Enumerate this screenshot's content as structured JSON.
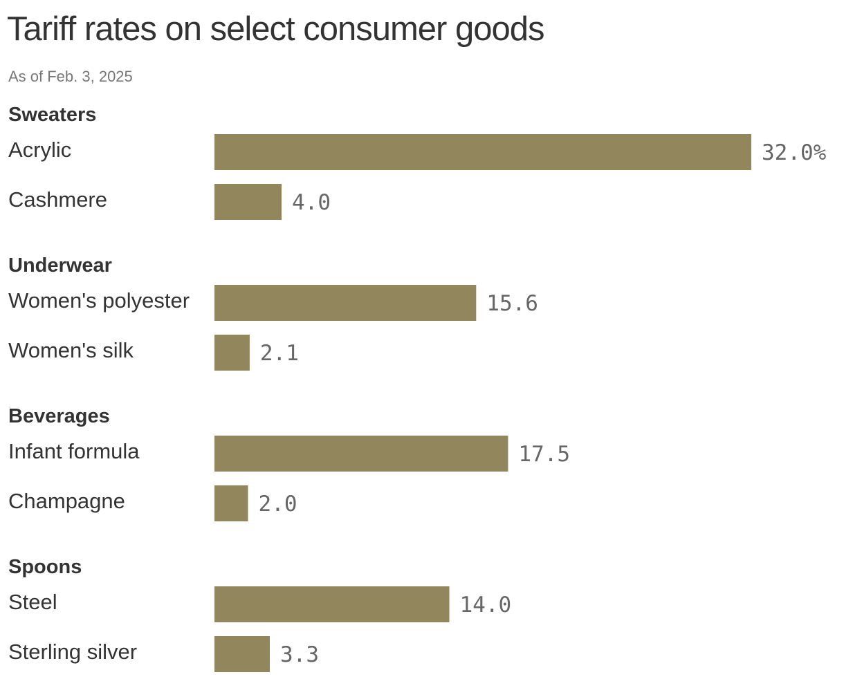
{
  "header": {
    "title": "Tariff rates on select consumer goods",
    "subtitle": "As of Feb. 3, 2025"
  },
  "colors": {
    "bar": "#91865c",
    "text": "#333333",
    "value_text": "#666666",
    "subtitle_text": "#777777"
  },
  "chart_data": {
    "type": "bar",
    "orientation": "horizontal",
    "title": "Tariff rates on select consumer goods",
    "subtitle": "As of Feb. 3, 2025",
    "unit": "%",
    "xlim": [
      0,
      32
    ],
    "grid": false,
    "legend": "none",
    "groups": [
      {
        "name": "Sweaters",
        "items": [
          {
            "label": "Acrylic",
            "value": 32.0,
            "display": "32.0%"
          },
          {
            "label": "Cashmere",
            "value": 4.0,
            "display": "4.0"
          }
        ]
      },
      {
        "name": "Underwear",
        "items": [
          {
            "label": "Women's polyester",
            "value": 15.6,
            "display": "15.6"
          },
          {
            "label": "Women's silk",
            "value": 2.1,
            "display": "2.1"
          }
        ]
      },
      {
        "name": "Beverages",
        "items": [
          {
            "label": "Infant formula",
            "value": 17.5,
            "display": "17.5"
          },
          {
            "label": "Champagne",
            "value": 2.0,
            "display": "2.0"
          }
        ]
      },
      {
        "name": "Spoons",
        "items": [
          {
            "label": "Steel",
            "value": 14.0,
            "display": "14.0"
          },
          {
            "label": "Sterling silver",
            "value": 3.3,
            "display": "3.3"
          }
        ]
      }
    ]
  }
}
